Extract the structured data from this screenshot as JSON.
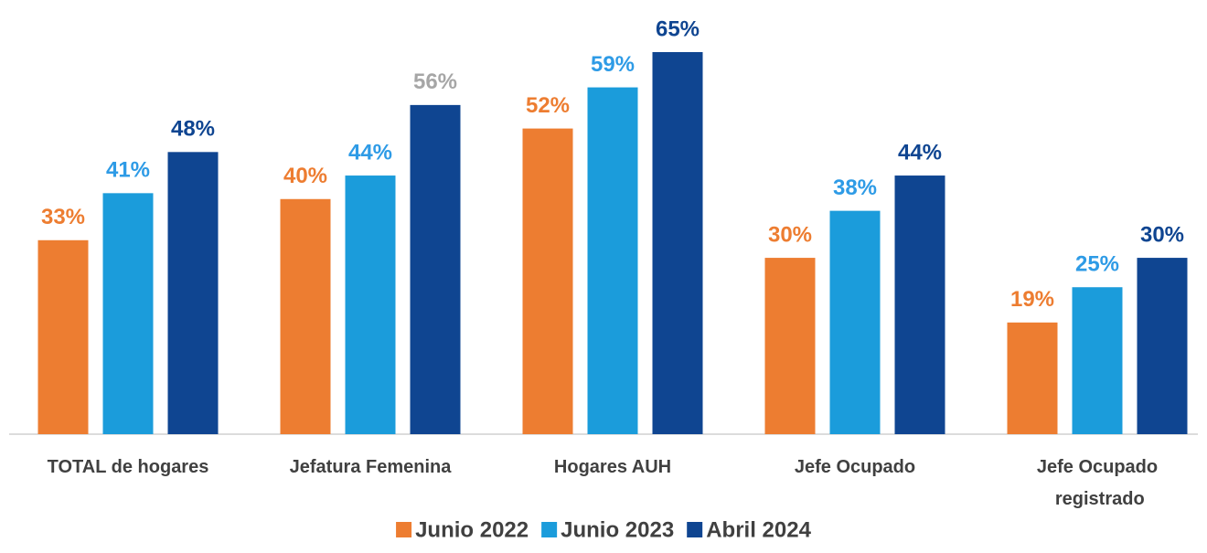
{
  "chart_data": {
    "type": "bar",
    "categories": [
      "TOTAL de hogares",
      "Jefatura Femenina",
      "Hogares AUH",
      "Jefe Ocupado",
      "Jefe Ocupado registrado"
    ],
    "series": [
      {
        "name": "Junio 2022",
        "color": "#ED7D31",
        "values": [
          33,
          40,
          52,
          30,
          19
        ],
        "value_labels": [
          "33%",
          "40%",
          "52%",
          "30%",
          "19%"
        ],
        "label_colors": [
          "#ED7D31",
          "#ED7D31",
          "#ED7D31",
          "#ED7D31",
          "#ED7D31"
        ]
      },
      {
        "name": "Junio 2023",
        "color": "#1B9CDB",
        "values": [
          41,
          44,
          59,
          38,
          25
        ],
        "value_labels": [
          "41%",
          "44%",
          "59%",
          "38%",
          "25%"
        ],
        "label_colors": [
          "#2E9BE6",
          "#2E9BE6",
          "#2E9BE6",
          "#2E9BE6",
          "#2E9BE6"
        ]
      },
      {
        "name": "Abril 2024",
        "color": "#0F4591",
        "values": [
          48,
          56,
          65,
          44,
          30
        ],
        "value_labels": [
          "48%",
          "56%",
          "65%",
          "44%",
          "30%"
        ],
        "label_colors": [
          "#0F4591",
          "#A6A6A6",
          "#0F4591",
          "#0F4591",
          "#0F4591"
        ]
      }
    ],
    "legend": "bottom"
  }
}
